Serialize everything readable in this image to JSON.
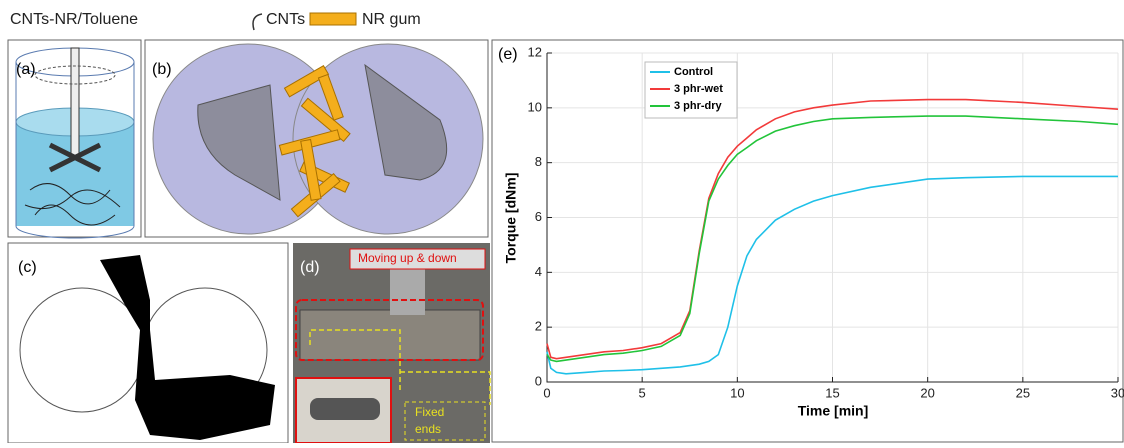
{
  "panels": {
    "header": "CNTs-NR/Toluene",
    "legend": [
      "CNTs",
      "NR gum"
    ],
    "a": "(a)",
    "b": "(b)",
    "c": "(c)",
    "d": "(d)",
    "d_top": "Moving up & down",
    "d_bottom": [
      "Fixed",
      "ends"
    ]
  },
  "chart_data": {
    "type": "line",
    "panel_label": "(e)",
    "xlabel": "Time [min]",
    "ylabel": "Torque [dNm]",
    "x": [
      0,
      0.2,
      0.5,
      1,
      2,
      3,
      4,
      5,
      6,
      7,
      7.5,
      8,
      8.5,
      9,
      9.5,
      10,
      10.5,
      11,
      12,
      13,
      14,
      15,
      17,
      20,
      22,
      25,
      28,
      30
    ],
    "series": [
      {
        "name": "Control",
        "color": "#1fc0e8",
        "values": [
          1.1,
          0.5,
          0.35,
          0.3,
          0.35,
          0.4,
          0.42,
          0.45,
          0.5,
          0.55,
          0.6,
          0.65,
          0.75,
          1.0,
          2.0,
          3.5,
          4.6,
          5.2,
          5.9,
          6.3,
          6.6,
          6.8,
          7.1,
          7.4,
          7.45,
          7.5,
          7.5,
          7.5
        ]
      },
      {
        "name": "3 phr-wet",
        "color": "#f23a3a",
        "values": [
          1.4,
          0.9,
          0.85,
          0.9,
          1.0,
          1.1,
          1.15,
          1.25,
          1.4,
          1.8,
          2.6,
          4.8,
          6.7,
          7.6,
          8.2,
          8.6,
          8.9,
          9.2,
          9.6,
          9.85,
          10.0,
          10.1,
          10.25,
          10.3,
          10.3,
          10.2,
          10.05,
          9.95
        ]
      },
      {
        "name": "3 phr-dry",
        "color": "#22c43a",
        "values": [
          1.0,
          0.8,
          0.75,
          0.8,
          0.9,
          1.0,
          1.05,
          1.15,
          1.3,
          1.7,
          2.5,
          4.7,
          6.6,
          7.4,
          7.9,
          8.3,
          8.55,
          8.8,
          9.15,
          9.35,
          9.5,
          9.6,
          9.65,
          9.7,
          9.7,
          9.6,
          9.5,
          9.4
        ]
      }
    ],
    "xlim": [
      0,
      30
    ],
    "ylim": [
      0,
      12
    ],
    "xticks": [
      0,
      5,
      10,
      15,
      20,
      25,
      30
    ],
    "yticks": [
      0,
      2,
      4,
      6,
      8,
      10,
      12
    ],
    "grid": true
  }
}
